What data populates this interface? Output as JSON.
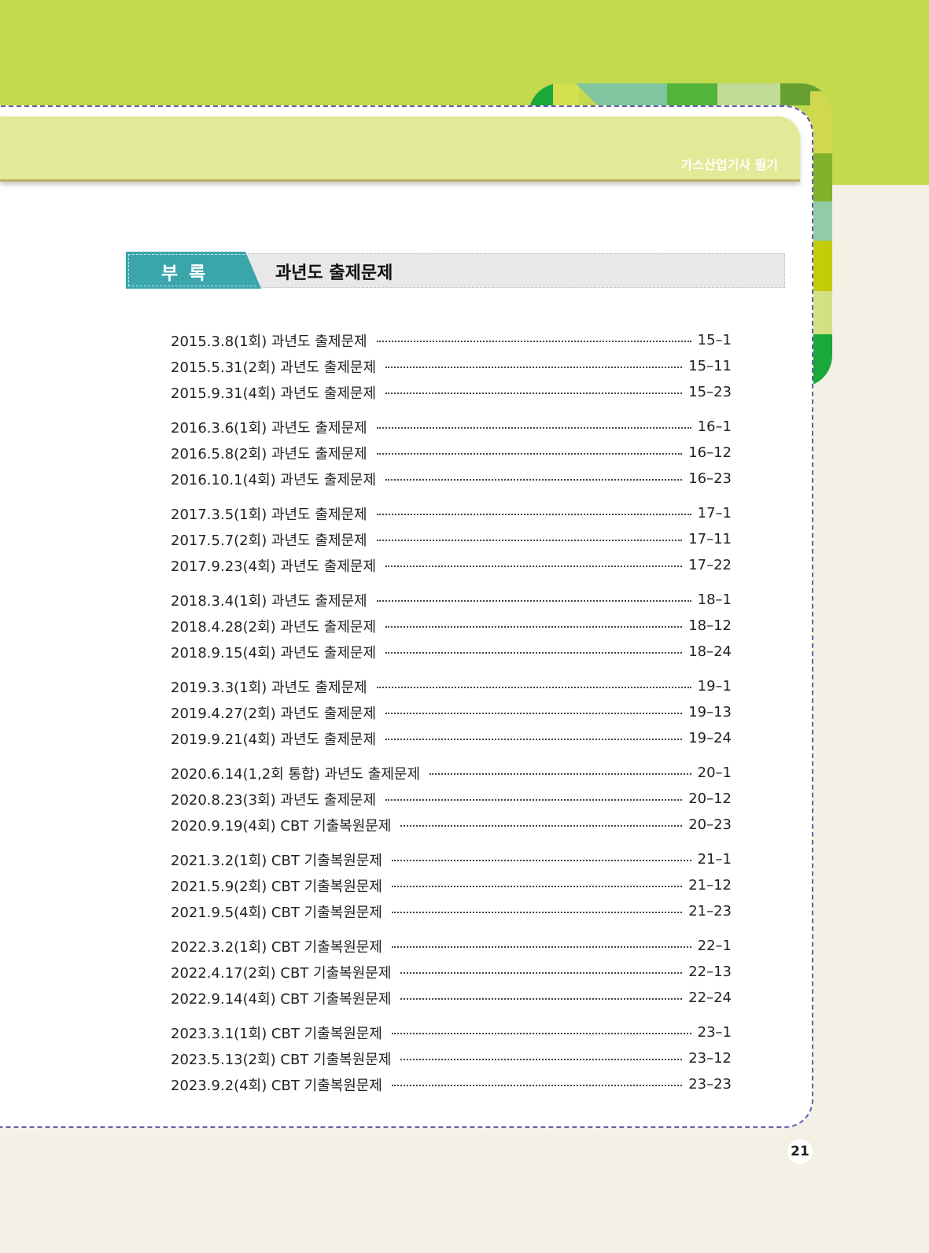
{
  "header": {
    "book_title": "가스산업기사 필기"
  },
  "section": {
    "tag": "부록",
    "title": "과년도 출제문제"
  },
  "colors": {
    "top_band": "#c4da4e",
    "header_band": "#e2ea98",
    "tag": "#3aa6ac",
    "border": "#6a5aad"
  },
  "toc": [
    {
      "title": "2015.3.8(1회) 과년도 출제문제",
      "page": "15–1"
    },
    {
      "title": "2015.5.31(2회) 과년도 출제문제",
      "page": "15–11"
    },
    {
      "title": "2015.9.31(4회) 과년도 출제문제",
      "page": "15–23"
    },
    {
      "title": "2016.3.6(1회) 과년도 출제문제",
      "page": "16–1"
    },
    {
      "title": "2016.5.8(2회) 과년도 출제문제",
      "page": "16–12"
    },
    {
      "title": "2016.10.1(4회) 과년도 출제문제",
      "page": "16–23"
    },
    {
      "title": "2017.3.5(1회) 과년도 출제문제",
      "page": "17–1"
    },
    {
      "title": "2017.5.7(2회) 과년도 출제문제",
      "page": "17–11"
    },
    {
      "title": "2017.9.23(4회) 과년도 출제문제",
      "page": "17–22"
    },
    {
      "title": "2018.3.4(1회) 과년도 출제문제",
      "page": "18–1"
    },
    {
      "title": "2018.4.28(2회) 과년도 출제문제",
      "page": "18–12"
    },
    {
      "title": "2018.9.15(4회) 과년도 출제문제",
      "page": "18–24"
    },
    {
      "title": "2019.3.3(1회) 과년도 출제문제",
      "page": "19–1"
    },
    {
      "title": "2019.4.27(2회) 과년도 출제문제",
      "page": "19–13"
    },
    {
      "title": "2019.9.21(4회) 과년도 출제문제",
      "page": "19–24"
    },
    {
      "title": "2020.6.14(1,2회 통합) 과년도 출제문제",
      "page": "20–1"
    },
    {
      "title": "2020.8.23(3회) 과년도 출제문제",
      "page": "20–12"
    },
    {
      "title": "2020.9.19(4회) CBT 기출복원문제",
      "page": "20–23"
    },
    {
      "title": "2021.3.2(1회) CBT 기출복원문제",
      "page": "21–1"
    },
    {
      "title": "2021.5.9(2회) CBT 기출복원문제",
      "page": "21–12"
    },
    {
      "title": "2021.9.5(4회) CBT 기출복원문제",
      "page": "21–23"
    },
    {
      "title": "2022.3.2(1회) CBT 기출복원문제",
      "page": "22–1"
    },
    {
      "title": "2022.4.17(2회) CBT 기출복원문제",
      "page": "22–13"
    },
    {
      "title": "2022.9.14(4회) CBT 기출복원문제",
      "page": "22–24"
    },
    {
      "title": "2023.3.1(1회) CBT 기출복원문제",
      "page": "23–1"
    },
    {
      "title": "2023.5.13(2회) CBT 기출복원문제",
      "page": "23–12"
    },
    {
      "title": "2023.9.2(4회) CBT 기출복원문제",
      "page": "23–23"
    }
  ],
  "page_number": "21"
}
